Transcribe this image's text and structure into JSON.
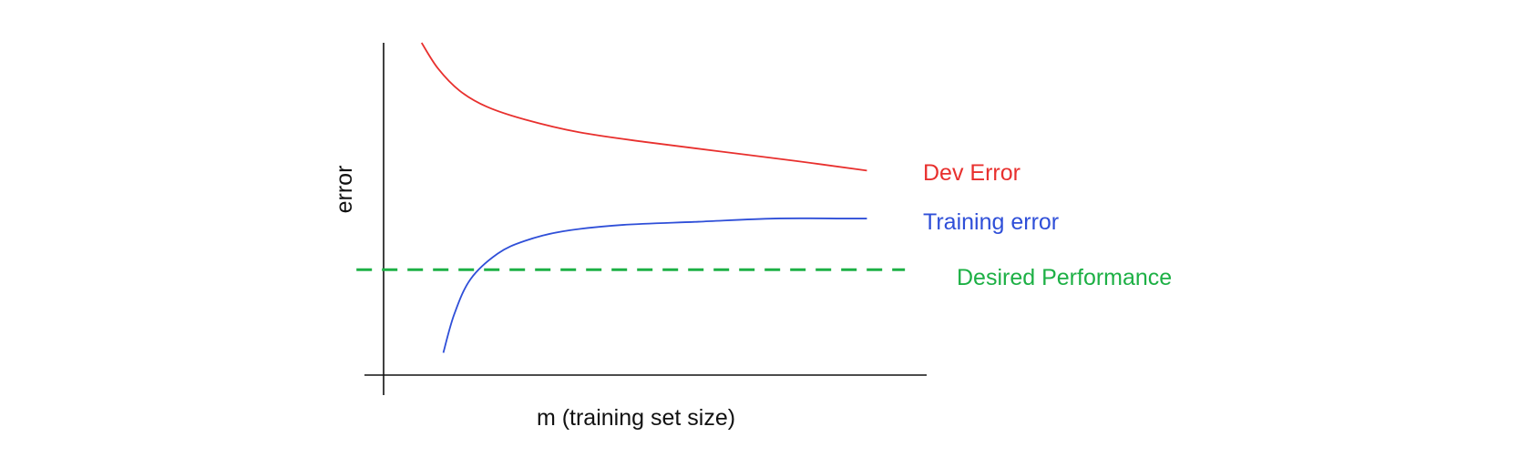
{
  "chart_data": {
    "type": "line",
    "title": "",
    "xlabel": "m (training set size)",
    "ylabel": "error",
    "grid": false,
    "ticks": "none",
    "xlim": [
      0,
      1
    ],
    "ylim": [
      0,
      1
    ],
    "series": [
      {
        "name": "Dev Error",
        "color": "#e8302e",
        "style": "solid",
        "x": [
          0.07,
          0.1,
          0.14,
          0.19,
          0.26,
          0.36,
          0.48,
          0.62,
          0.76,
          0.89
        ],
        "y": [
          1.0,
          0.92,
          0.85,
          0.8,
          0.76,
          0.72,
          0.69,
          0.66,
          0.63,
          0.6
        ]
      },
      {
        "name": "Training error",
        "color": "#2f4fd8",
        "style": "solid",
        "x": [
          0.11,
          0.13,
          0.16,
          0.21,
          0.26,
          0.33,
          0.44,
          0.58,
          0.72,
          0.85,
          0.89
        ],
        "y": [
          0.03,
          0.15,
          0.26,
          0.34,
          0.38,
          0.41,
          0.43,
          0.44,
          0.45,
          0.45,
          0.45
        ]
      },
      {
        "name": "Desired Performance",
        "color": "#1db045",
        "style": "dashed",
        "x": [
          -0.05,
          0.96
        ],
        "y": [
          0.29,
          0.29
        ]
      }
    ]
  }
}
